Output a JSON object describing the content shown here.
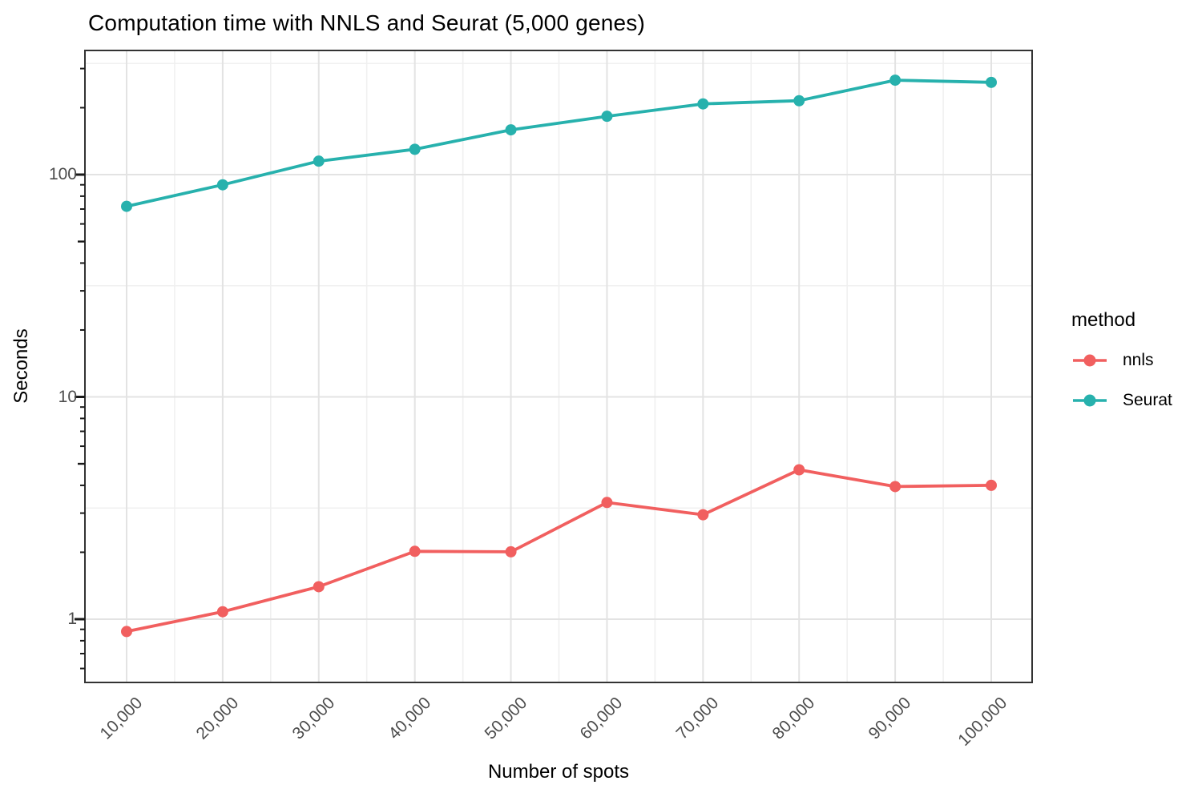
{
  "title": "Computation time with NNLS and Seurat (5,000 genes)",
  "axes": {
    "x": {
      "label": "Number of spots"
    },
    "y": {
      "label": "Seconds",
      "scale": "log10",
      "tick_labels": [
        "1",
        "10",
        "100"
      ]
    }
  },
  "legend": {
    "title": "method",
    "position": "right",
    "entries": [
      "nnls",
      "Seurat"
    ]
  },
  "style": {
    "background": "#ffffff",
    "panel_background": "#ffffff",
    "grid_major_color": "#e3e3e3",
    "grid_minor_color": "#f0f0f0",
    "panel_border_color": "#333333",
    "tick_color": "#1a1a1a",
    "tick_label_color": "#4d4d4d",
    "text_color": "#000000",
    "nnls_color": "#f15f5f",
    "seurat_color": "#27b1ad"
  },
  "chart_data": {
    "type": "line",
    "title": "Computation time with NNLS and Seurat (5,000 genes)",
    "xlabel": "Number of spots",
    "ylabel": "Seconds",
    "x_categories": [
      "10,000",
      "20,000",
      "30,000",
      "40,000",
      "50,000",
      "60,000",
      "70,000",
      "80,000",
      "90,000",
      "100,000"
    ],
    "y_scale": "log10",
    "y_axis_ticks": [
      1,
      10,
      100
    ],
    "y_minor_gridlines": [
      3.162,
      31.62,
      316.2
    ],
    "ylim_approx": [
      0.55,
      360
    ],
    "grid": "major and minor, light gray on white, full panel border",
    "legend_position": "right",
    "marker": "filled circle on line",
    "series": [
      {
        "name": "nnls",
        "color": "#f15f5f",
        "values": [
          0.88,
          1.08,
          1.4,
          2.02,
          2.01,
          3.35,
          2.95,
          4.7,
          3.95,
          4.0
        ]
      },
      {
        "name": "Seurat",
        "color": "#27b1ad",
        "values": [
          72,
          90,
          115,
          130,
          159,
          183,
          208,
          215,
          266,
          260
        ]
      }
    ]
  }
}
